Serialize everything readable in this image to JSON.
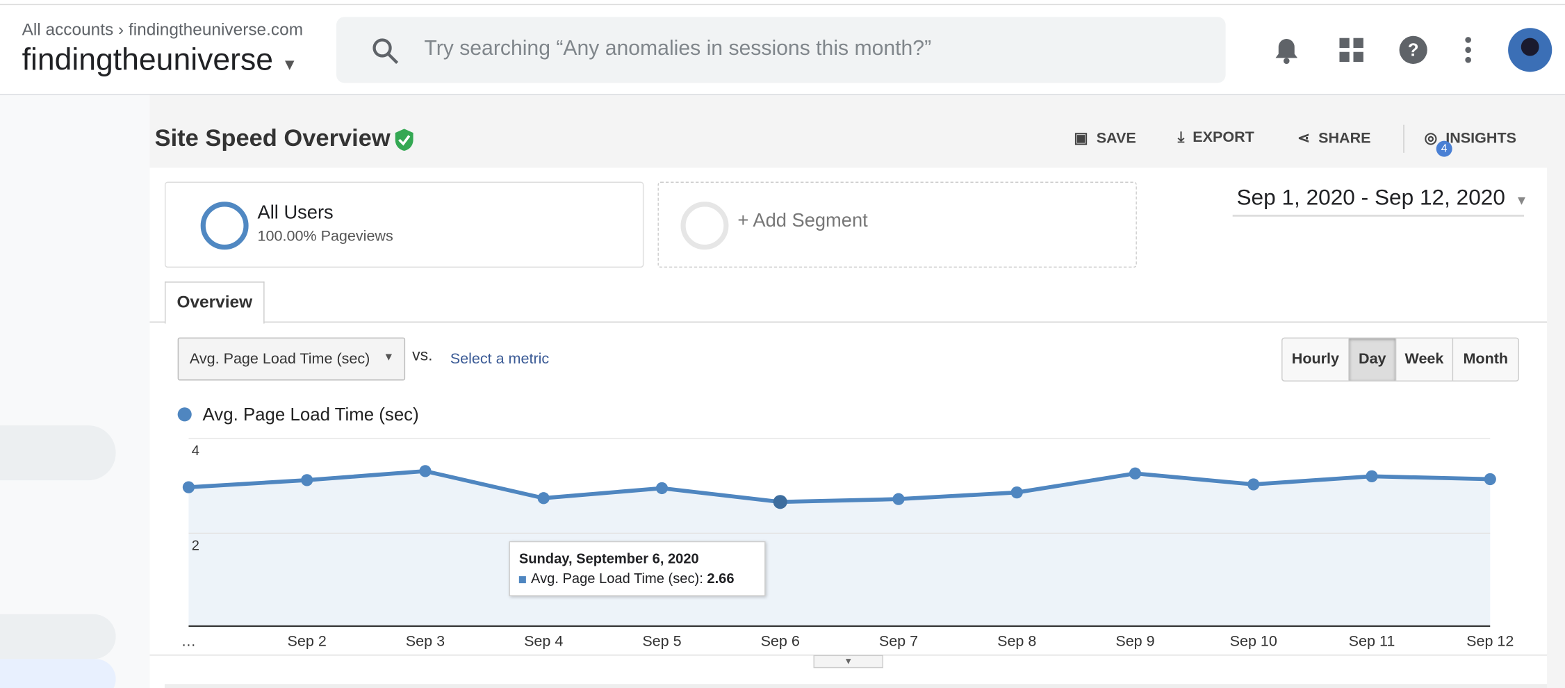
{
  "header": {
    "breadcrumb_account": "All accounts",
    "breadcrumb_property": "findingtheuniverse.com",
    "property": "findingtheuniverse",
    "search_placeholder": "Try searching “Any anomalies in sessions this month?”"
  },
  "report": {
    "title": "Site Speed Overview",
    "actions": [
      "SAVE",
      "EXPORT",
      "SHARE",
      "INSIGHTS"
    ],
    "insights_badge": "4"
  },
  "segments": {
    "name": "All Users",
    "detail": "100.00% Pageviews",
    "add": "+ Add Segment"
  },
  "date_range": "Sep 1, 2020 - Sep 12, 2020",
  "tab": "Overview",
  "metric_select": "Avg. Page Load Time (sec)",
  "vs": "vs.",
  "select_metric": "Select a metric",
  "granularity": [
    "Hourly",
    "Day",
    "Week",
    "Month"
  ],
  "chart_data": {
    "type": "line",
    "categories": [
      "…",
      "Sep 2",
      "Sep 3",
      "Sep 4",
      "Sep 5",
      "Sep 6",
      "Sep 7",
      "Sep 8",
      "Sep 9",
      "Sep 10",
      "Sep 11",
      "Sep 12"
    ],
    "series": [
      {
        "name": "Avg. Page Load Time (sec)",
        "color": "#4f86c0",
        "values": [
          2.97,
          3.12,
          3.31,
          2.74,
          2.95,
          2.66,
          2.72,
          2.86,
          3.26,
          3.03,
          3.2,
          3.14
        ]
      }
    ],
    "ylim": [
      0,
      4
    ],
    "yticks": [
      2,
      4
    ],
    "grid": true,
    "tooltip": {
      "title": "Sunday, September 6, 2020",
      "label": "Avg. Page Load Time (sec):"
    }
  }
}
